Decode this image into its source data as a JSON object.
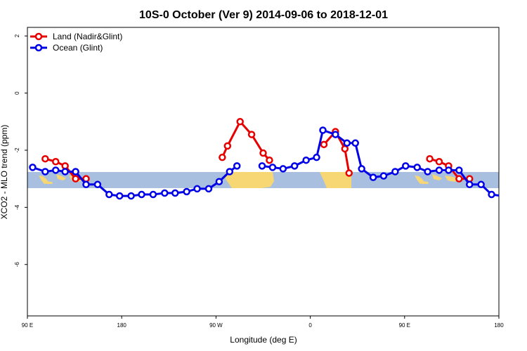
{
  "colors": {
    "land": "#e60000",
    "ocean": "#0000e6",
    "band": "#a9bfe0",
    "landmass": "#f7d774"
  },
  "chart_data": {
    "type": "line",
    "title": "10S-0 October (Ver 9)   2014-09-06 to 2018-12-01",
    "xlabel": "Longitude (deg E)",
    "ylabel": "XCO2 - MLO trend (ppm)",
    "xlim": [
      90,
      540
    ],
    "ylim": [
      -7.8,
      2.3
    ],
    "x_ticks": [
      {
        "value": 90,
        "label": "90 E"
      },
      {
        "value": 180,
        "label": "180"
      },
      {
        "value": 270,
        "label": "90 W"
      },
      {
        "value": 360,
        "label": "0"
      },
      {
        "value": 450,
        "label": "90 E"
      },
      {
        "value": 540,
        "label": "180"
      }
    ],
    "y_ticks": [
      {
        "value": 2,
        "label": "2"
      },
      {
        "value": 0,
        "label": "0"
      },
      {
        "value": -2,
        "label": "-2"
      },
      {
        "value": -4,
        "label": "-4"
      },
      {
        "value": -6,
        "label": "-6"
      }
    ],
    "grid": false,
    "legend_position": "top-left",
    "series": [
      {
        "name": "Land (Nadir&Glint)",
        "color": "#e60000",
        "segments": [
          [
            [
              107,
              -2.3
            ],
            [
              117,
              -2.4
            ],
            [
              126,
              -2.55
            ],
            [
              136,
              -3.0
            ],
            [
              146,
              -3.0
            ]
          ],
          [
            [
              276,
              -2.25
            ],
            [
              281,
              -1.85
            ],
            [
              293,
              -1.0
            ],
            [
              304,
              -1.45
            ],
            [
              315,
              -2.1
            ],
            [
              321,
              -2.35
            ]
          ],
          [
            [
              373,
              -1.8
            ],
            [
              384,
              -1.35
            ],
            [
              393,
              -1.95
            ],
            [
              397,
              -2.8
            ]
          ],
          [
            [
              474,
              -2.3
            ],
            [
              483,
              -2.4
            ],
            [
              492,
              -2.55
            ],
            [
              502,
              -3.0
            ],
            [
              512,
              -3.0
            ]
          ]
        ]
      },
      {
        "name": "Ocean (Glint)",
        "color": "#0000e6",
        "segments": [
          [
            [
              95,
              -2.6
            ],
            [
              107,
              -2.75
            ],
            [
              117,
              -2.7
            ],
            [
              126,
              -2.75
            ],
            [
              136,
              -2.75
            ],
            [
              146,
              -3.2
            ],
            [
              157,
              -3.2
            ],
            [
              168,
              -3.55
            ],
            [
              178,
              -3.6
            ],
            [
              189,
              -3.6
            ],
            [
              199,
              -3.55
            ],
            [
              210,
              -3.55
            ],
            [
              221,
              -3.5
            ],
            [
              231,
              -3.5
            ],
            [
              242,
              -3.45
            ],
            [
              252,
              -3.35
            ],
            [
              263,
              -3.35
            ],
            [
              273,
              -3.1
            ],
            [
              283,
              -2.75
            ],
            [
              290,
              -2.55
            ]
          ],
          [
            [
              314,
              -2.55
            ],
            [
              324,
              -2.6
            ],
            [
              334,
              -2.65
            ],
            [
              345,
              -2.55
            ],
            [
              356,
              -2.35
            ],
            [
              366,
              -2.25
            ],
            [
              372,
              -1.3
            ],
            [
              384,
              -1.45
            ],
            [
              395,
              -1.75
            ],
            [
              403,
              -1.75
            ],
            [
              409,
              -2.65
            ],
            [
              420,
              -2.95
            ],
            [
              430,
              -2.9
            ],
            [
              441,
              -2.75
            ],
            [
              451,
              -2.55
            ],
            [
              462,
              -2.6
            ],
            [
              472,
              -2.75
            ],
            [
              483,
              -2.7
            ],
            [
              492,
              -2.7
            ],
            [
              502,
              -2.7
            ],
            [
              512,
              -3.2
            ],
            [
              523,
              -3.2
            ],
            [
              533,
              -3.55
            ],
            [
              543,
              -3.6
            ]
          ]
        ]
      }
    ]
  }
}
